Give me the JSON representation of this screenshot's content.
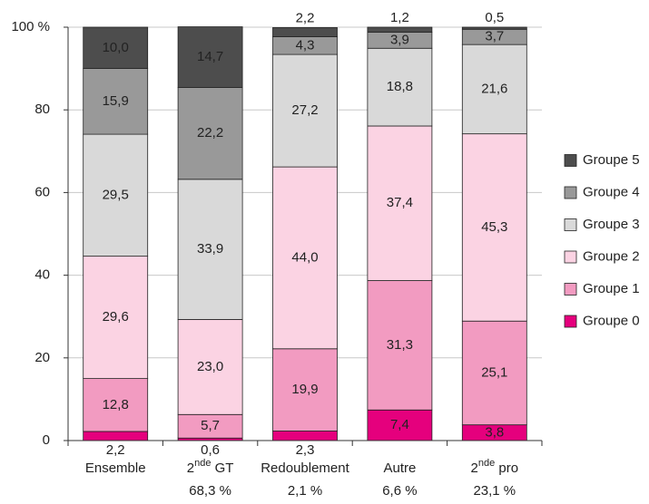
{
  "chart_data": {
    "type": "stacked_bar",
    "categories": [
      {
        "text": "Ensemble"
      },
      {
        "text": "2",
        "sup": "nde",
        "rest": " GT",
        "share": "68,3 %"
      },
      {
        "text": "Redoublement",
        "share": "2,1 %"
      },
      {
        "text": "Autre",
        "share": "6,6 %"
      },
      {
        "text": "2",
        "sup": "nde",
        "rest": " pro",
        "share": "23,1 %"
      }
    ],
    "series": [
      {
        "name": "Groupe 0",
        "color": "#e5007d",
        "values": [
          2.2,
          0.6,
          2.3,
          7.4,
          3.8
        ],
        "value_labels": [
          "2,2",
          "0,6",
          "2,3",
          "7,4",
          "3,8"
        ]
      },
      {
        "name": "Groupe 1",
        "color": "#f29bc1",
        "values": [
          12.8,
          5.7,
          19.9,
          31.3,
          25.1
        ],
        "value_labels": [
          "12,8",
          "5,7",
          "19,9",
          "31,3",
          "25,1"
        ]
      },
      {
        "name": "Groupe 2",
        "color": "#fbd3e3",
        "values": [
          29.6,
          23.0,
          44.0,
          37.4,
          45.3
        ],
        "value_labels": [
          "29,6",
          "23,0",
          "44,0",
          "37,4",
          "45,3"
        ]
      },
      {
        "name": "Groupe 3",
        "color": "#d9d9d9",
        "values": [
          29.5,
          33.9,
          27.2,
          18.8,
          21.6
        ],
        "value_labels": [
          "29,5",
          "33,9",
          "27,2",
          "18,8",
          "21,6"
        ]
      },
      {
        "name": "Groupe 4",
        "color": "#999999",
        "values": [
          15.9,
          22.2,
          4.3,
          3.9,
          3.7
        ],
        "value_labels": [
          "15,9",
          "22,2",
          "4,3",
          "3,9",
          "3,7"
        ]
      },
      {
        "name": "Groupe 5",
        "color": "#4d4d4d",
        "values": [
          10.0,
          14.7,
          2.2,
          1.2,
          0.5
        ],
        "value_labels": [
          "10,0",
          "14,7",
          "2,2",
          "1,2",
          "0,5"
        ]
      }
    ],
    "ylim": [
      0,
      100
    ],
    "yticks": [
      0,
      20,
      40,
      60,
      80,
      {
        "value": 100,
        "label": "100 %"
      }
    ],
    "grid": true,
    "legend": "right"
  }
}
